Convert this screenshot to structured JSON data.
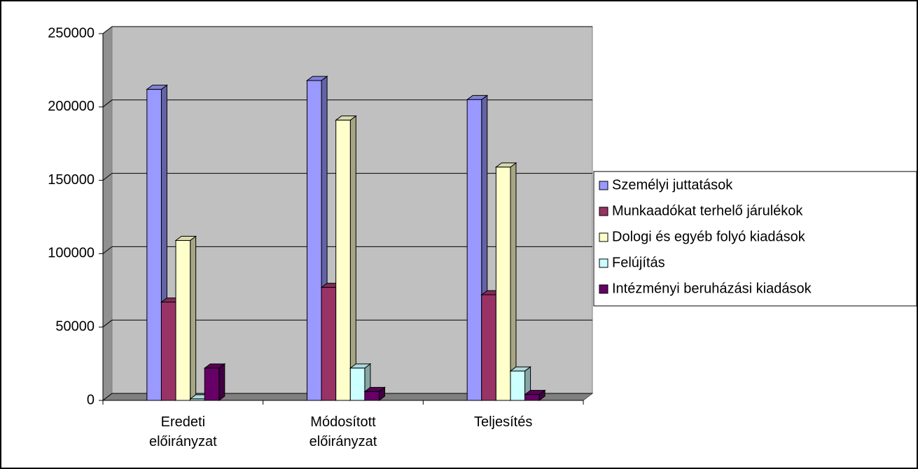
{
  "chart_data": {
    "type": "bar3d",
    "categories": [
      "Eredeti\nelőirányzat",
      "Módosított\nelőirányzat",
      "Teljesítés"
    ],
    "series": [
      {
        "name": "Személyi juttatások",
        "color": "#9999ff",
        "values": [
          212000,
          218000,
          205000
        ]
      },
      {
        "name": "Munkaadókat terhelő járulékok",
        "color": "#993366",
        "values": [
          67000,
          77000,
          72000
        ]
      },
      {
        "name": "Dologi és egyéb folyó kiadások",
        "color": "#ffffcc",
        "values": [
          109000,
          191000,
          159000
        ]
      },
      {
        "name": "Felújítás",
        "color": "#ccffff",
        "values": [
          1000,
          22000,
          20000
        ]
      },
      {
        "name": "Intézményi beruházási kiadások",
        "color": "#660066",
        "values": [
          22000,
          6000,
          4000
        ]
      }
    ],
    "ylim": [
      0,
      250000
    ],
    "yticks": [
      0,
      50000,
      100000,
      150000,
      200000,
      250000
    ],
    "grid": true,
    "legend": "right",
    "plot_color": "#c0c0c0"
  }
}
